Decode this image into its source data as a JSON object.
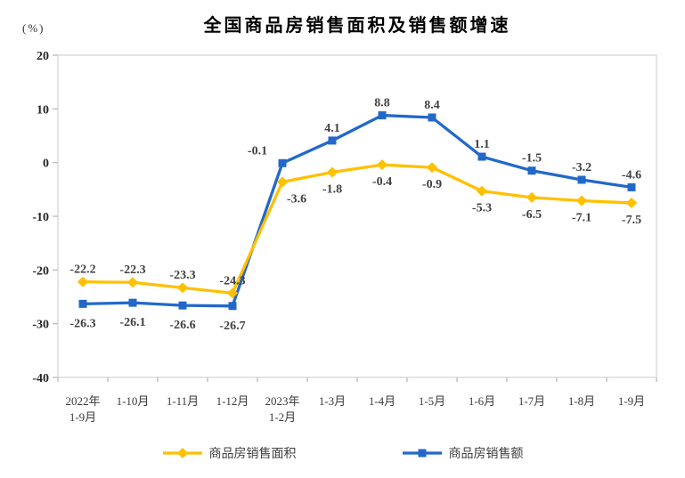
{
  "chart": {
    "title": "全国商品房销售面积及销售额增速",
    "unit_label": "(%)"
  },
  "chart_data": {
    "type": "line",
    "title": "全国商品房销售面积及销售额增速",
    "xlabel": "",
    "ylabel": "(%)",
    "ylim": [
      -40,
      20
    ],
    "yticks": [
      20,
      10,
      0,
      -10,
      -20,
      -30,
      -40
    ],
    "grid": false,
    "legend_position": "bottom",
    "data_labels": true,
    "categories": [
      [
        "2022年",
        "1-9月"
      ],
      [
        "1-10月"
      ],
      [
        "1-11月"
      ],
      [
        "1-12月"
      ],
      [
        "2023年",
        "1-2月"
      ],
      [
        "1-3月"
      ],
      [
        "1-4月"
      ],
      [
        "1-5月"
      ],
      [
        "1-6月"
      ],
      [
        "1-7月"
      ],
      [
        "1-8月"
      ],
      [
        "1-9月"
      ]
    ],
    "series": [
      {
        "name": "商品房销售面积",
        "color": "#FFC000",
        "marker": "diamond",
        "values": [
          -22.2,
          -22.3,
          -23.3,
          -24.3,
          -3.6,
          -1.8,
          -0.4,
          -0.9,
          -5.3,
          -6.5,
          -7.1,
          -7.5
        ],
        "label_sides": [
          "above",
          "above",
          "above",
          "above",
          "below",
          "below",
          "below",
          "below",
          "below",
          "below",
          "below",
          "below"
        ],
        "label_dx": [
          0,
          0,
          0,
          0,
          16,
          0,
          0,
          0,
          0,
          0,
          0,
          0
        ]
      },
      {
        "name": "商品房销售额",
        "color": "#2268CB",
        "marker": "square",
        "values": [
          -26.3,
          -26.1,
          -26.6,
          -26.7,
          -0.1,
          4.1,
          8.8,
          8.4,
          1.1,
          -1.5,
          -3.2,
          -4.6
        ],
        "label_sides": [
          "below",
          "below",
          "below",
          "below",
          "above",
          "above",
          "above",
          "above",
          "above",
          "above",
          "above",
          "above"
        ],
        "label_dx": [
          0,
          0,
          0,
          0,
          -28,
          0,
          0,
          0,
          0,
          0,
          0,
          0
        ]
      }
    ]
  },
  "colors": {
    "plot_border": "#D9D9D9",
    "tick": "#BFBFBF",
    "axis_text": "#262626",
    "category_text": "#3A3A3A",
    "data_label_text": "#404040"
  }
}
